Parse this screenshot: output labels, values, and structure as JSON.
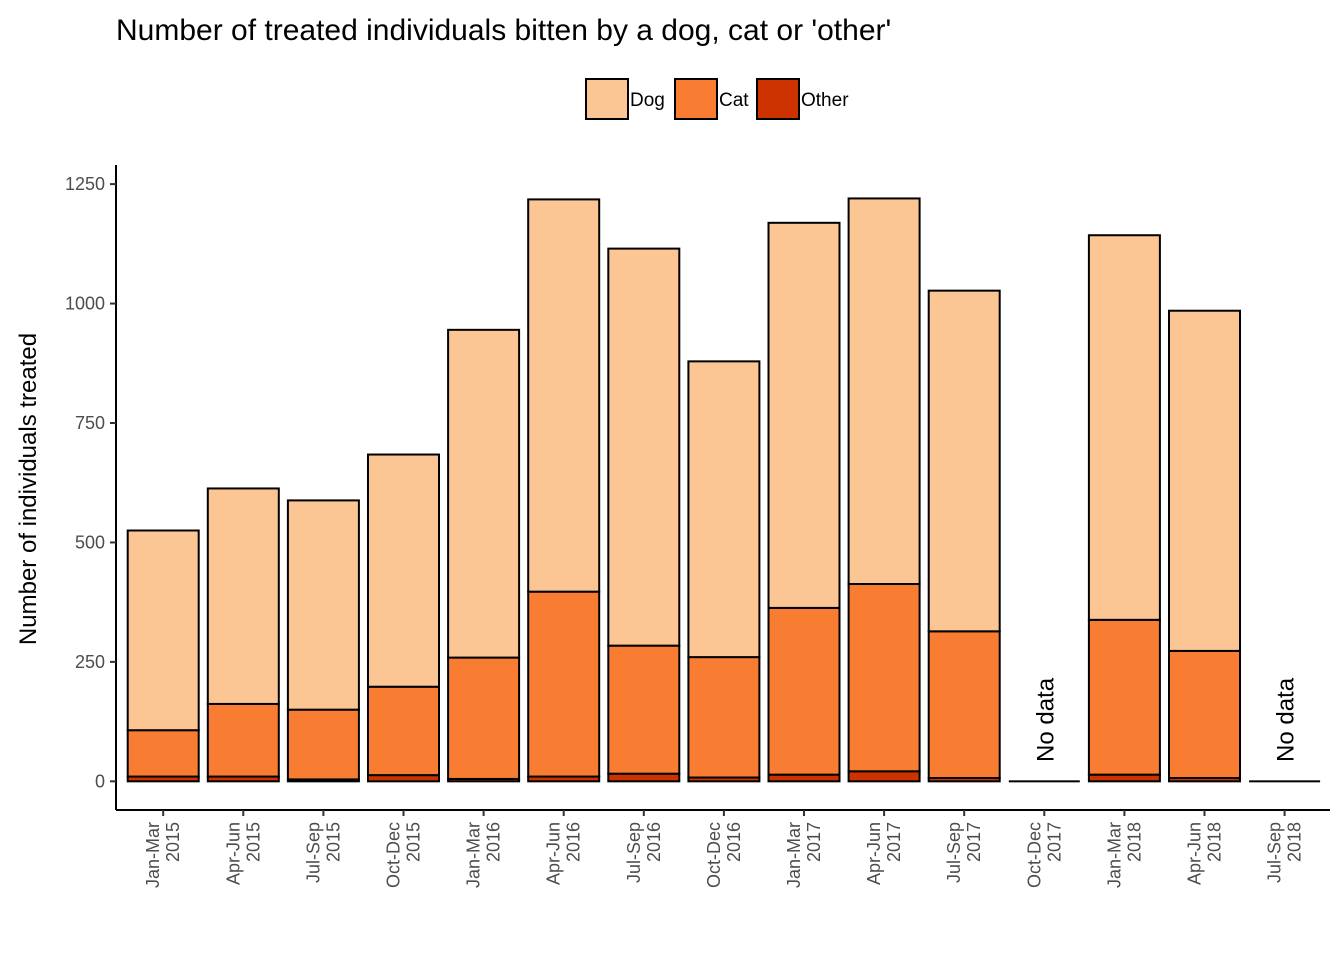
{
  "chart_data": {
    "type": "bar",
    "stacked": true,
    "title": "Number of treated individuals bitten by a dog, cat or 'other'",
    "ylabel": "Number of individuals treated",
    "xlabel": "",
    "ylim": [
      -60,
      1290
    ],
    "yticks": [
      0,
      250,
      500,
      750,
      1000,
      1250
    ],
    "grid": false,
    "legend_position": "top",
    "categories": [
      [
        "Jan-Mar",
        "2015"
      ],
      [
        "Apr-Jun",
        "2015"
      ],
      [
        "Jul-Sep",
        "2015"
      ],
      [
        "Oct-Dec",
        "2015"
      ],
      [
        "Jan-Mar",
        "2016"
      ],
      [
        "Apr-Jun",
        "2016"
      ],
      [
        "Jul-Sep",
        "2016"
      ],
      [
        "Oct-Dec",
        "2016"
      ],
      [
        "Jan-Mar",
        "2017"
      ],
      [
        "Apr-Jun",
        "2017"
      ],
      [
        "Jul-Sep",
        "2017"
      ],
      [
        "Oct-Dec",
        "2017"
      ],
      [
        "Jan-Mar",
        "2018"
      ],
      [
        "Apr-Jun",
        "2018"
      ],
      [
        "Jul-Sep",
        "2018"
      ]
    ],
    "series": [
      {
        "name": "Other",
        "color": "#cc3300",
        "values": [
          10,
          10,
          4,
          13,
          5,
          10,
          16,
          8,
          14,
          21,
          7,
          0,
          14,
          7,
          0
        ]
      },
      {
        "name": "Cat",
        "color": "#f87d32",
        "values": [
          97,
          152,
          146,
          185,
          254,
          387,
          268,
          252,
          349,
          392,
          307,
          0,
          324,
          266,
          0
        ]
      },
      {
        "name": "Dog",
        "color": "#fcc594",
        "values": [
          418,
          451,
          438,
          486,
          686,
          821,
          831,
          619,
          806,
          807,
          713,
          0,
          805,
          712,
          0
        ]
      }
    ],
    "legend_order": [
      "Dog",
      "Cat",
      "Other"
    ],
    "annotations": [
      {
        "category_index": 11,
        "text": "No data"
      },
      {
        "category_index": 14,
        "text": "No data"
      }
    ]
  }
}
